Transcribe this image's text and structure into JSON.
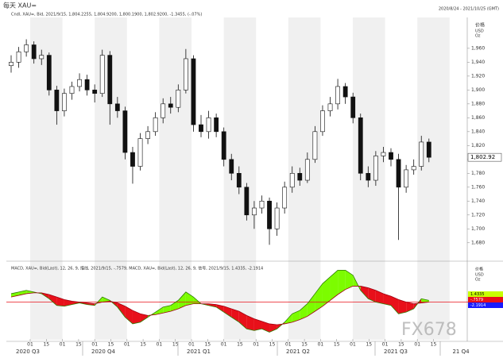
{
  "chart_data": {
    "type": "candlestick",
    "title": "每天 XAU=",
    "subtitle": "Cndl, XAU=, Bid, 2021/9/15, 1,804.2255, 1,804.9200, 1,800.1900, 1,802.9200, -1.3455, (-.07%)",
    "date_range": "2020/8/24 - 2021/10/25 (GMT)",
    "y_axis_label": [
      "价格",
      "USD",
      "Oz"
    ],
    "last_price_label": "1,802.92",
    "watermark": "FX678",
    "ylim": [
      1658,
      2001
    ],
    "yticks": [
      {
        "value": 1680,
        "label": "1,680"
      },
      {
        "value": 1700,
        "label": "1,700"
      },
      {
        "value": 1720,
        "label": "1,720"
      },
      {
        "value": 1740,
        "label": "1,740"
      },
      {
        "value": 1760,
        "label": "1,760"
      },
      {
        "value": 1780,
        "label": "1,780"
      },
      {
        "value": 1800,
        "label": "1,800"
      },
      {
        "value": 1820,
        "label": "1,820"
      },
      {
        "value": 1840,
        "label": "1,840"
      },
      {
        "value": 1860,
        "label": "1,860"
      },
      {
        "value": 1880,
        "label": "1,880"
      },
      {
        "value": 1900,
        "label": "1,900"
      },
      {
        "value": 1920,
        "label": "1,920"
      },
      {
        "value": 1940,
        "label": "1,940"
      },
      {
        "value": 1960,
        "label": "1,960"
      }
    ],
    "categories": [
      "01",
      "15",
      "01",
      "15",
      "01",
      "15",
      "01",
      "15",
      "01",
      "15",
      "01",
      "15",
      "01",
      "15",
      "01",
      "15",
      "01",
      "15",
      "01",
      "15",
      "01",
      "15",
      "01",
      "15",
      "01",
      "15"
    ],
    "quarters": [
      "2020 Q3",
      "2020 Q4",
      "2021 Q1",
      "2021 Q2",
      "2021 Q3",
      "21 Q4"
    ],
    "open": [
      1935,
      1940,
      1955,
      1965,
      1945,
      1950,
      1900,
      1870,
      1895,
      1905,
      1915,
      1900,
      1895,
      1950,
      1880,
      1870,
      1810,
      1790,
      1830,
      1840,
      1860,
      1880,
      1875,
      1900,
      1945,
      1850,
      1840,
      1860,
      1840,
      1800,
      1780,
      1760,
      1720,
      1730,
      1740,
      1700,
      1730,
      1760,
      1780,
      1770,
      1800,
      1840,
      1870,
      1880,
      1905,
      1890,
      1860,
      1780,
      1770,
      1805,
      1810,
      1800,
      1760,
      1785,
      1790,
      1825
    ],
    "high": [
      1950,
      1962,
      1973,
      1970,
      1958,
      1954,
      1906,
      1902,
      1912,
      1924,
      1922,
      1908,
      1958,
      1956,
      1890,
      1876,
      1818,
      1838,
      1848,
      1868,
      1888,
      1890,
      1908,
      1959,
      1950,
      1864,
      1870,
      1866,
      1846,
      1808,
      1790,
      1766,
      1740,
      1748,
      1745,
      1738,
      1768,
      1790,
      1788,
      1810,
      1848,
      1878,
      1890,
      1916,
      1910,
      1896,
      1866,
      1790,
      1812,
      1818,
      1816,
      1808,
      1792,
      1800,
      1834,
      1830
    ],
    "low": [
      1925,
      1932,
      1948,
      1938,
      1936,
      1892,
      1850,
      1862,
      1886,
      1898,
      1892,
      1882,
      1890,
      1850,
      1860,
      1800,
      1765,
      1784,
      1822,
      1834,
      1852,
      1866,
      1868,
      1895,
      1840,
      1832,
      1830,
      1832,
      1790,
      1770,
      1750,
      1712,
      1700,
      1722,
      1677,
      1690,
      1722,
      1752,
      1762,
      1766,
      1795,
      1834,
      1862,
      1872,
      1880,
      1852,
      1770,
      1760,
      1762,
      1796,
      1790,
      1684,
      1752,
      1778,
      1784,
      1796
    ],
    "close": [
      1940,
      1955,
      1965,
      1945,
      1950,
      1900,
      1870,
      1895,
      1905,
      1915,
      1900,
      1895,
      1950,
      1880,
      1870,
      1810,
      1790,
      1830,
      1840,
      1860,
      1880,
      1875,
      1900,
      1945,
      1850,
      1840,
      1860,
      1840,
      1800,
      1780,
      1760,
      1720,
      1730,
      1740,
      1700,
      1730,
      1760,
      1780,
      1770,
      1800,
      1840,
      1870,
      1880,
      1905,
      1890,
      1860,
      1780,
      1770,
      1805,
      1810,
      1800,
      1760,
      1785,
      1790,
      1825,
      1803
    ],
    "macd_title": "MACD, XAU=, Bid(Last), 12, 26, 9, 描线, 2021/9/15, -.7579, MACD, XAU=, Bid(Last), 12, 26, 9, 信号, 2021/9/15, 1.4335, -2.1914",
    "macd_badges": [
      "1.4335",
      "-.7579",
      "-2.1914"
    ],
    "macd_ylim": [
      -45,
      45
    ],
    "macd": [
      10,
      12,
      14,
      12,
      10,
      4,
      -4,
      -5,
      -3,
      -1,
      -3,
      -4,
      6,
      2,
      -6,
      -18,
      -26,
      -24,
      -18,
      -12,
      -6,
      -4,
      2,
      12,
      6,
      -2,
      -4,
      -6,
      -12,
      -18,
      -24,
      -32,
      -34,
      -32,
      -36,
      -32,
      -24,
      -14,
      -10,
      -2,
      10,
      22,
      30,
      38,
      38,
      32,
      14,
      4,
      0,
      -2,
      -4,
      -14,
      -12,
      -8,
      4,
      2
    ],
    "signal": [
      6,
      8,
      10,
      11,
      11,
      9,
      6,
      3,
      1,
      0,
      -1,
      -2,
      0,
      1,
      -1,
      -5,
      -10,
      -14,
      -16,
      -15,
      -13,
      -11,
      -8,
      -4,
      -2,
      -2,
      -2,
      -3,
      -5,
      -8,
      -11,
      -16,
      -20,
      -23,
      -26,
      -27,
      -26,
      -24,
      -21,
      -17,
      -11,
      -5,
      2,
      9,
      15,
      19,
      19,
      17,
      14,
      10,
      7,
      3,
      0,
      -2,
      -1,
      0
    ],
    "up_color": "#ffffff",
    "down_color": "#111111",
    "above_color": "#7cfc00",
    "below_color": "#e8101a"
  }
}
